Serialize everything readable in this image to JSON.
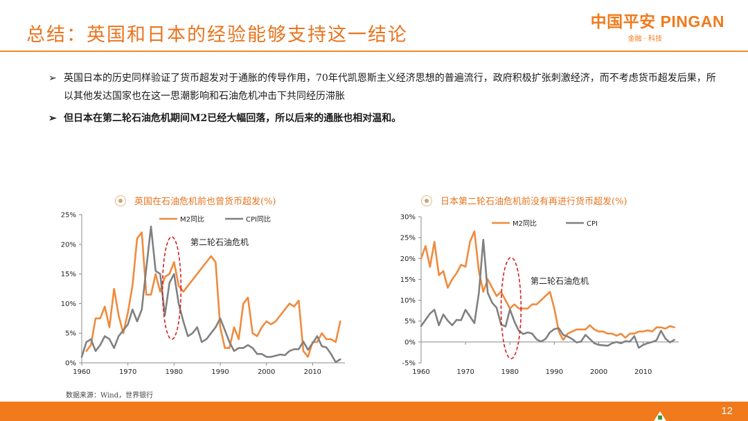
{
  "header": {
    "title": "总结：英国和日本的经验能够支持这一结论",
    "logo_text": "中国平安 PINGAN",
    "logo_sub": "金融 · 科技"
  },
  "bullets": [
    {
      "mark": "➢",
      "text": "英国日本的历史同样验证了货币超发对于通胀的传导作用，70年代凯恩斯主义经济思想的普遍流行，政府积极扩张刺激经济，而不考虑货币超发后果，所以其他发达国家也在这一思潮影响和石油危机冲击下共同经历滞胀"
    },
    {
      "mark": "➢",
      "text": "但日本在第二轮石油危机期间M2已经大幅回落，所以后来的通胀也相对温和。"
    }
  ],
  "colors": {
    "m2": "#f08a3c",
    "cpi": "#808080",
    "accent": "#f07a1c",
    "ellipse": "#d42020"
  },
  "chart_data": [
    {
      "type": "line",
      "title": "英国在石油危机前也曾货币超发(%)",
      "ylim": [
        0,
        25
      ],
      "yticks": [
        0,
        5,
        10,
        15,
        20,
        25
      ],
      "ytick_labels": [
        "0%",
        "5%",
        "10%",
        "15%",
        "20%",
        "25%"
      ],
      "xlim": [
        1960,
        2017
      ],
      "xticks": [
        1960,
        1970,
        1980,
        1990,
        2000,
        2010
      ],
      "xtick_labels": [
        "1960",
        "1970",
        "1980",
        "1990",
        "2000",
        "2010"
      ],
      "annotation": "第二轮石油危机",
      "highlight_x": [
        1977.5,
        1981.5
      ],
      "series": [
        {
          "name": "M2同比",
          "color": "#f08a3c",
          "x": [
            1961,
            1962,
            1963,
            1964,
            1965,
            1966,
            1967,
            1968,
            1969,
            1970,
            1971,
            1972,
            1973,
            1974,
            1975,
            1976,
            1977,
            1978,
            1979,
            1980,
            1981,
            1982,
            1983,
            1984,
            1985,
            1986,
            1987,
            1988,
            1989,
            1990,
            1991,
            1992,
            1993,
            1994,
            1995,
            1996,
            1997,
            1998,
            1999,
            2000,
            2001,
            2002,
            2003,
            2004,
            2005,
            2006,
            2007,
            2008,
            2009,
            2010,
            2011,
            2012,
            2013,
            2014,
            2015,
            2016
          ],
          "y": [
            2,
            3,
            7.5,
            7.5,
            9.5,
            6,
            12.5,
            8,
            5,
            8.5,
            13,
            21,
            22,
            11.5,
            11.5,
            15,
            12,
            14.5,
            15,
            17,
            13,
            12,
            13,
            14,
            15,
            16,
            17,
            18,
            17,
            6,
            2.5,
            2.5,
            6,
            4,
            10,
            11,
            5,
            4.5,
            6,
            7,
            6.5,
            7,
            8,
            9,
            10,
            9.5,
            10.5,
            2,
            1,
            3.5,
            3.5,
            5,
            4,
            4,
            3.5,
            7
          ]
        },
        {
          "name": "CPI同比",
          "color": "#808080",
          "x": [
            1960,
            1961,
            1962,
            1963,
            1964,
            1965,
            1966,
            1967,
            1968,
            1969,
            1970,
            1971,
            1972,
            1973,
            1974,
            1975,
            1976,
            1977,
            1978,
            1979,
            1980,
            1981,
            1982,
            1983,
            1984,
            1985,
            1986,
            1987,
            1988,
            1989,
            1990,
            1991,
            1992,
            1993,
            1994,
            1995,
            1996,
            1997,
            1998,
            1999,
            2000,
            2001,
            2002,
            2003,
            2004,
            2005,
            2006,
            2007,
            2008,
            2009,
            2010,
            2011,
            2012,
            2013,
            2014,
            2015,
            2016
          ],
          "y": [
            1,
            3.5,
            4,
            2,
            3,
            4.5,
            4,
            2.5,
            4.5,
            5.5,
            6.5,
            9,
            7,
            9,
            16,
            23,
            15.5,
            15,
            8,
            13.5,
            15,
            10,
            7,
            4.5,
            5,
            6,
            3.5,
            4,
            5,
            6,
            7.5,
            5.5,
            3.5,
            2,
            2.5,
            2.5,
            3,
            2.5,
            1.5,
            1.5,
            1,
            1,
            1.2,
            1.4,
            1.3,
            2,
            2.3,
            2.3,
            3.6,
            2.2,
            3.3,
            4.5,
            2.8,
            2.6,
            1.5,
            0.1,
            0.6
          ]
        }
      ]
    },
    {
      "type": "line",
      "title": "日本第二轮石油危机前没有再进行货币超发(%)",
      "ylim": [
        -5,
        30
      ],
      "yticks": [
        -5,
        0,
        5,
        10,
        15,
        20,
        25,
        30
      ],
      "ytick_labels": [
        "-5%",
        "0%",
        "5%",
        "10%",
        "15%",
        "20%",
        "25%",
        "30%"
      ],
      "xlim": [
        1960,
        2018
      ],
      "xticks": [
        1960,
        1970,
        1980,
        1990,
        2000,
        2010
      ],
      "xtick_labels": [
        "1960",
        "1970",
        "1980",
        "1990",
        "2000",
        "2010"
      ],
      "annotation": "第二轮石油危机",
      "highlight_x": [
        1978,
        1982.5
      ],
      "series": [
        {
          "name": "M2同比",
          "color": "#f08a3c",
          "x": [
            1960,
            1961,
            1962,
            1963,
            1964,
            1965,
            1966,
            1967,
            1968,
            1969,
            1970,
            1971,
            1972,
            1973,
            1974,
            1975,
            1976,
            1977,
            1978,
            1979,
            1980,
            1981,
            1982,
            1983,
            1984,
            1985,
            1986,
            1987,
            1988,
            1989,
            1990,
            1991,
            1992,
            1993,
            1994,
            1995,
            1996,
            1997,
            1998,
            1999,
            2000,
            2001,
            2002,
            2003,
            2004,
            2005,
            2006,
            2007,
            2008,
            2009,
            2010,
            2011,
            2012,
            2013,
            2014,
            2015,
            2016,
            2017
          ],
          "y": [
            20,
            23,
            18,
            24,
            16,
            17,
            13,
            15,
            16.5,
            18.5,
            18,
            24,
            26.5,
            17,
            12,
            15,
            13,
            11,
            12,
            10,
            8,
            9,
            8,
            8,
            8,
            9,
            9,
            10,
            11,
            12,
            8,
            2.5,
            0.5,
            2,
            2.5,
            3,
            3,
            3,
            4,
            3,
            2.5,
            2.5,
            2,
            2,
            1.5,
            2,
            1,
            2,
            2,
            2.5,
            2.5,
            2.8,
            2.5,
            3.5,
            3.5,
            3.2,
            3.8,
            3.5
          ]
        },
        {
          "name": "CPI",
          "color": "#808080",
          "x": [
            1960,
            1961,
            1962,
            1963,
            1964,
            1965,
            1966,
            1967,
            1968,
            1969,
            1970,
            1971,
            1972,
            1973,
            1974,
            1975,
            1976,
            1977,
            1978,
            1979,
            1980,
            1981,
            1982,
            1983,
            1984,
            1985,
            1986,
            1987,
            1988,
            1989,
            1990,
            1991,
            1992,
            1993,
            1994,
            1995,
            1996,
            1997,
            1998,
            1999,
            2000,
            2001,
            2002,
            2003,
            2004,
            2005,
            2006,
            2007,
            2008,
            2009,
            2010,
            2011,
            2012,
            2013,
            2014,
            2015,
            2016,
            2017
          ],
          "y": [
            3.8,
            5.3,
            6.8,
            7.7,
            4,
            6.6,
            5.1,
            4,
            5.3,
            5.2,
            7.7,
            6.1,
            4.5,
            11.7,
            24.5,
            11.8,
            9.4,
            8.2,
            4.2,
            3.7,
            7.8,
            4.9,
            2.7,
            1.9,
            2.3,
            2,
            0.6,
            0.1,
            0.7,
            2.3,
            3.1,
            3.3,
            1.7,
            1.3,
            0.7,
            -0.1,
            0.1,
            1.7,
            0.7,
            -0.3,
            -0.7,
            -0.8,
            -0.9,
            -0.3,
            0,
            -0.3,
            0.2,
            0.1,
            1.4,
            -1.4,
            -0.7,
            -0.3,
            0,
            0.4,
            2.7,
            0.8,
            -0.1,
            0.5
          ]
        }
      ]
    }
  ],
  "source": "数据来源：Wind，世界银行",
  "footer": {
    "page_number": "12"
  }
}
